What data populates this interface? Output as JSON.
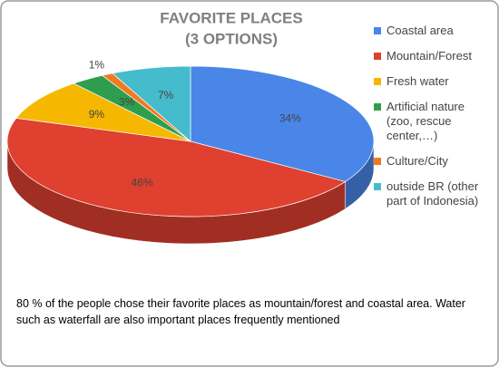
{
  "chart_data": {
    "type": "pie3d",
    "title": "FAVORITE PLACES",
    "subtitle": "(3 OPTIONS)",
    "categories": [
      "Coastal area",
      "Mountain/Forest",
      "Fresh water",
      "Artificial nature (zoo, rescue center,…)",
      "Culture/City",
      "outside BR (other part of Indonesia)"
    ],
    "values": [
      34,
      46,
      9,
      3,
      1,
      7
    ],
    "value_labels": [
      "34%",
      "46%",
      "9%",
      "3%",
      "1%",
      "7%"
    ],
    "colors": [
      "#4a86e8",
      "#e0402f",
      "#f5b700",
      "#2e9e4e",
      "#f07a20",
      "#45bccb"
    ],
    "legend": "right",
    "annotation": "80 % of the people chose their favorite places as mountain/forest and coastal area. Water such as waterfall are also important places frequently mentioned"
  }
}
